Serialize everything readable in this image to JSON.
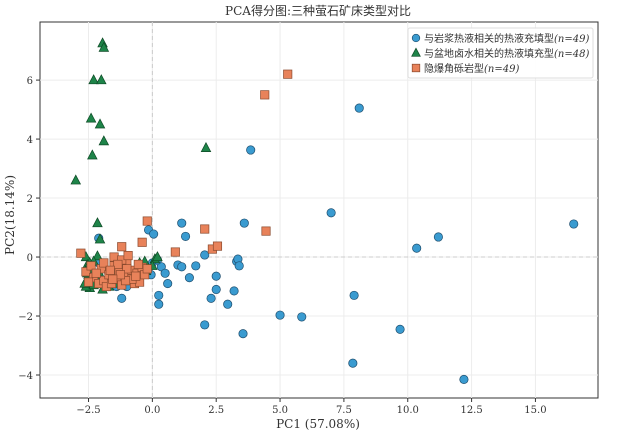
{
  "chart_data": {
    "type": "scatter",
    "title": "PCA得分图:三种萤石矿床类型对比",
    "xlabel": "PC1 (57.08%)",
    "ylabel": "PC2(18.14%)",
    "xlim": [
      -4.4,
      17.45
    ],
    "ylim": [
      -4.78,
      7.97
    ],
    "xticks": [
      -2.5,
      0.0,
      2.5,
      5.0,
      7.5,
      10.0,
      12.5,
      15.0
    ],
    "xtick_labels": [
      "−2.5",
      "0.0",
      "2.5",
      "5.0",
      "7.5",
      "10.0",
      "12.5",
      "15.0"
    ],
    "yticks": [
      -4,
      -2,
      0,
      2,
      4,
      6
    ],
    "ytick_labels": [
      "−4",
      "−2",
      "0",
      "2",
      "4",
      "6"
    ],
    "grid": true,
    "legend_position": "top-right",
    "series": [
      {
        "name": "与岩浆热液相关的热液充填型",
        "n_label": "(n=49)",
        "marker": "circle",
        "color": "#3a9bd0",
        "edge": "#1f4e6e",
        "points": [
          [
            -2.1,
            0.64
          ],
          [
            -2.1,
            -0.2
          ],
          [
            -1.7,
            -1.0
          ],
          [
            -1.4,
            -1.0
          ],
          [
            -1.2,
            -1.4
          ],
          [
            -0.15,
            0.92
          ],
          [
            0.05,
            0.78
          ],
          [
            0,
            -0.2
          ],
          [
            0.35,
            -0.33
          ],
          [
            0.5,
            -0.55
          ],
          [
            -0.05,
            -0.6
          ],
          [
            0.25,
            -1.3
          ],
          [
            0.25,
            -1.6
          ],
          [
            1.15,
            1.15
          ],
          [
            1.3,
            0.7
          ],
          [
            1.0,
            -0.27
          ],
          [
            1.15,
            -0.33
          ],
          [
            1.45,
            -0.7
          ],
          [
            2.05,
            0.07
          ],
          [
            2.5,
            -0.65
          ],
          [
            2.5,
            -1.1
          ],
          [
            2.3,
            -1.4
          ],
          [
            2.95,
            -1.6
          ],
          [
            3.2,
            -1.15
          ],
          [
            3.3,
            -0.15
          ],
          [
            3.35,
            -0.07
          ],
          [
            3.6,
            1.15
          ],
          [
            2.05,
            -2.3
          ],
          [
            3.85,
            3.63
          ],
          [
            8.1,
            5.05
          ],
          [
            7.0,
            1.5
          ],
          [
            3.55,
            -2.6
          ],
          [
            5.0,
            -1.97
          ],
          [
            5.85,
            -2.03
          ],
          [
            7.9,
            -1.3
          ],
          [
            7.85,
            -3.6
          ],
          [
            9.7,
            -2.45
          ],
          [
            10.35,
            0.3
          ],
          [
            11.2,
            0.68
          ],
          [
            12.2,
            -4.15
          ],
          [
            16.5,
            1.12
          ],
          [
            -2.2,
            -0.9
          ],
          [
            -1.5,
            -0.7
          ],
          [
            -0.9,
            -0.5
          ],
          [
            0.2,
            -0.1
          ],
          [
            1.7,
            -0.3
          ],
          [
            -1.0,
            -1.0
          ],
          [
            0.6,
            -0.9
          ],
          [
            3.4,
            -0.3
          ]
        ]
      },
      {
        "name": "与盆地卤水相关的热液填充型",
        "n_label": "(n=48)",
        "marker": "triangle",
        "color": "#1e8449",
        "edge": "#0e4a26",
        "points": [
          [
            -1.95,
            7.25
          ],
          [
            -1.9,
            7.1
          ],
          [
            -2.3,
            6.0
          ],
          [
            -2.0,
            6.0
          ],
          [
            -2.4,
            4.7
          ],
          [
            -2.05,
            4.5
          ],
          [
            -1.9,
            3.93
          ],
          [
            -2.35,
            3.45
          ],
          [
            -3.0,
            2.6
          ],
          [
            2.1,
            3.7
          ],
          [
            -2.15,
            1.15
          ],
          [
            -2.05,
            0.6
          ],
          [
            -2.6,
            0
          ],
          [
            -2.55,
            -0.27
          ],
          [
            -2.15,
            0.03
          ],
          [
            -0.3,
            -0.15
          ],
          [
            0.1,
            -0.07
          ],
          [
            -0.35,
            -0.5
          ],
          [
            -0.25,
            -0.47
          ],
          [
            -1.95,
            -1.1
          ],
          [
            -2.55,
            -0.8
          ],
          [
            -2.45,
            -1.05
          ],
          [
            -2.6,
            -1.0
          ],
          [
            -2.5,
            -0.6
          ],
          [
            -2.4,
            -0.85
          ],
          [
            -2.3,
            -0.95
          ],
          [
            -2.2,
            -0.7
          ],
          [
            -2.0,
            -0.9
          ],
          [
            -1.8,
            -0.75
          ],
          [
            -1.6,
            -0.85
          ],
          [
            -2.35,
            -0.4
          ],
          [
            -2.1,
            -0.5
          ],
          [
            -1.4,
            -0.9
          ],
          [
            -1.2,
            -0.7
          ],
          [
            -0.9,
            -0.6
          ],
          [
            -0.6,
            -0.4
          ],
          [
            -0.5,
            -0.2
          ],
          [
            0.0,
            -0.3
          ],
          [
            -2.65,
            -0.9
          ],
          [
            -2.45,
            -0.2
          ],
          [
            -1.7,
            -1.0
          ],
          [
            -1.95,
            -0.3
          ],
          [
            -0.7,
            -0.8
          ],
          [
            -1.0,
            -0.35
          ],
          [
            -2.3,
            -0.15
          ],
          [
            -2.55,
            -0.55
          ],
          [
            -1.5,
            -0.5
          ],
          [
            0.2,
            0.0
          ]
        ]
      },
      {
        "name": "隐爆角砾岩型",
        "n_label": "(n=49)",
        "marker": "square",
        "color": "#e8825a",
        "edge": "#8a4a2e",
        "points": [
          [
            4.4,
            5.5
          ],
          [
            5.3,
            6.2
          ],
          [
            2.05,
            0.95
          ],
          [
            -0.2,
            1.22
          ],
          [
            -0.4,
            0.5
          ],
          [
            -1.2,
            0.35
          ],
          [
            0.9,
            0.17
          ],
          [
            2.35,
            0.27
          ],
          [
            2.55,
            0.37
          ],
          [
            -2.8,
            0.13
          ],
          [
            4.45,
            0.88
          ],
          [
            -2.6,
            -0.5
          ],
          [
            -2.4,
            -0.3
          ],
          [
            -2.3,
            -0.7
          ],
          [
            -2.1,
            -0.9
          ],
          [
            -2.0,
            -0.4
          ],
          [
            -1.9,
            -0.8
          ],
          [
            -1.8,
            -1.0
          ],
          [
            -1.7,
            -0.6
          ],
          [
            -1.6,
            -0.9
          ],
          [
            -1.5,
            -0.3
          ],
          [
            -1.4,
            -0.75
          ],
          [
            -1.3,
            -0.5
          ],
          [
            -1.2,
            -0.95
          ],
          [
            -1.1,
            -0.6
          ],
          [
            -1.0,
            -0.2
          ],
          [
            -0.9,
            -0.8
          ],
          [
            -0.8,
            -0.45
          ],
          [
            -0.7,
            -0.9
          ],
          [
            -0.6,
            -0.55
          ],
          [
            -0.5,
            -0.85
          ],
          [
            -0.4,
            -0.35
          ],
          [
            -1.5,
            0.0
          ],
          [
            -1.2,
            -0.1
          ],
          [
            -1.0,
            -0.4
          ],
          [
            -0.3,
            -0.6
          ],
          [
            -1.9,
            -0.2
          ],
          [
            -2.2,
            -0.55
          ],
          [
            -0.8,
            -0.75
          ],
          [
            -1.35,
            -0.25
          ],
          [
            -1.05,
            -0.8
          ],
          [
            -0.55,
            -0.25
          ],
          [
            -1.65,
            -0.45
          ],
          [
            -2.5,
            -0.85
          ],
          [
            -0.95,
            0.05
          ],
          [
            -1.25,
            -0.6
          ],
          [
            -0.65,
            -0.65
          ],
          [
            -1.55,
            -0.75
          ],
          [
            -0.2,
            -0.4
          ]
        ]
      }
    ]
  }
}
